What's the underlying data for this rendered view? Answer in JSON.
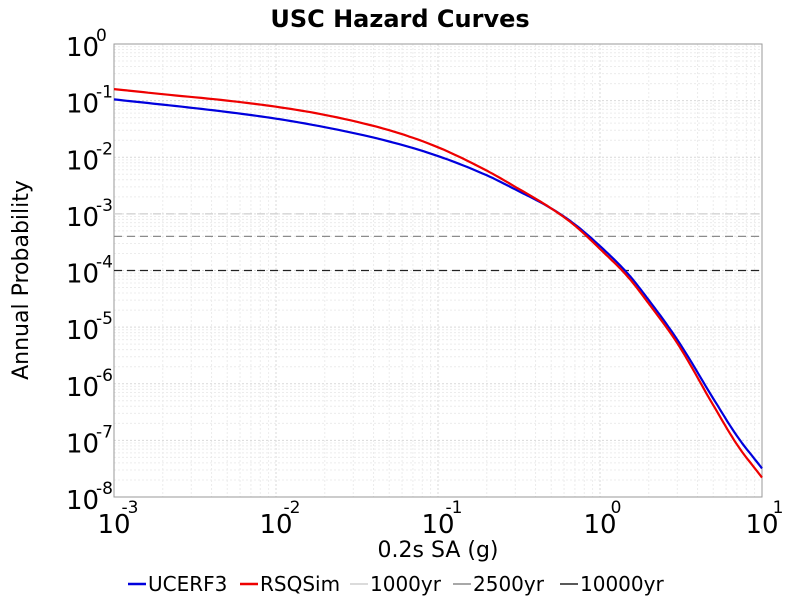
{
  "chart_data": {
    "type": "line",
    "title": "USC Hazard Curves",
    "xlabel": "0.2s SA (g)",
    "ylabel": "Annual Probability",
    "xscale": "log",
    "yscale": "log",
    "xlim": [
      0.001,
      10
    ],
    "ylim": [
      1e-08,
      1
    ],
    "grid": true,
    "legend_position": "bottom",
    "x_tick_labels": [
      {
        "base": "10",
        "exp": "-3"
      },
      {
        "base": "10",
        "exp": "-2"
      },
      {
        "base": "10",
        "exp": "-1"
      },
      {
        "base": "10",
        "exp": "0"
      },
      {
        "base": "10",
        "exp": "1"
      }
    ],
    "y_tick_labels": [
      {
        "base": "10",
        "exp": "0"
      },
      {
        "base": "10",
        "exp": "-1"
      },
      {
        "base": "10",
        "exp": "-2"
      },
      {
        "base": "10",
        "exp": "-3"
      },
      {
        "base": "10",
        "exp": "-4"
      },
      {
        "base": "10",
        "exp": "-5"
      },
      {
        "base": "10",
        "exp": "-6"
      },
      {
        "base": "10",
        "exp": "-7"
      },
      {
        "base": "10",
        "exp": "-8"
      }
    ],
    "series": [
      {
        "name": "UCERF3",
        "color": "#0000dd",
        "style": "solid",
        "x": [
          0.001,
          0.002,
          0.005,
          0.01,
          0.02,
          0.05,
          0.1,
          0.2,
          0.3,
          0.5,
          0.7,
          1.0,
          1.5,
          2.0,
          3.0,
          5.0,
          7.0,
          10.0
        ],
        "y": [
          0.105,
          0.085,
          0.063,
          0.048,
          0.034,
          0.019,
          0.0105,
          0.0048,
          0.0027,
          0.00125,
          0.00065,
          0.00027,
          8.5e-05,
          3e-05,
          6e-06,
          5.5e-07,
          1.2e-07,
          3.2e-08
        ]
      },
      {
        "name": "RSQSim",
        "color": "#ee0000",
        "style": "solid",
        "x": [
          0.001,
          0.002,
          0.005,
          0.01,
          0.02,
          0.05,
          0.1,
          0.2,
          0.3,
          0.5,
          0.7,
          1.0,
          1.5,
          2.0,
          3.0,
          5.0,
          7.0,
          10.0
        ],
        "y": [
          0.16,
          0.13,
          0.1,
          0.078,
          0.056,
          0.03,
          0.015,
          0.0058,
          0.003,
          0.00125,
          0.00062,
          0.00024,
          7.5e-05,
          2.6e-05,
          5.2e-06,
          4.2e-07,
          8.5e-08,
          2.2e-08
        ]
      },
      {
        "name": "1000yr",
        "color": "#cfcfcf",
        "style": "dashed",
        "x": [
          0.001,
          10
        ],
        "y": [
          0.001,
          0.001
        ]
      },
      {
        "name": "2500yr",
        "color": "#8c8c8c",
        "style": "dashed",
        "x": [
          0.001,
          10
        ],
        "y": [
          0.0004,
          0.0004
        ]
      },
      {
        "name": "10000yr",
        "color": "#222222",
        "style": "dashed",
        "x": [
          0.001,
          10
        ],
        "y": [
          0.0001,
          0.0001
        ]
      }
    ]
  }
}
